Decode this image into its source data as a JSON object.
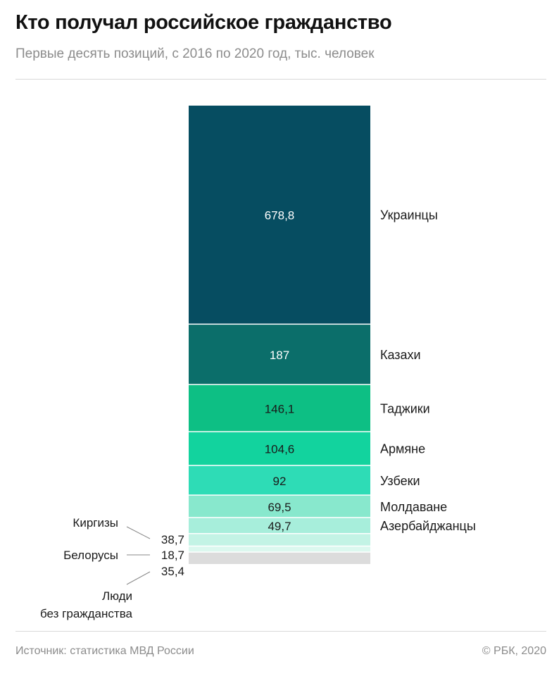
{
  "header": {
    "title": "Кто получал российское гражданство",
    "subtitle": "Первые десять позиций, с 2016 по 2020 год, тыс. человек"
  },
  "footer": {
    "source": "Источник: статистика МВД России",
    "copyright": "© РБК, 2020"
  },
  "chart_data": {
    "type": "bar",
    "stacked": true,
    "orientation": "vertical",
    "categories": [
      "Украинцы",
      "Казахи",
      "Таджики",
      "Армяне",
      "Узбеки",
      "Молдаване",
      "Азербайджанцы",
      "Киргизы",
      "Белорусы",
      "Люди без гражданства"
    ],
    "values": [
      678.8,
      187,
      146.1,
      104.6,
      92,
      69.5,
      49.7,
      38.7,
      18.7,
      35.4
    ],
    "value_labels": [
      "678,8",
      "187",
      "146,1",
      "104,6",
      "92",
      "69,5",
      "49,7",
      "38,7",
      "18,7",
      "35,4"
    ],
    "label_lines": [
      [
        "Украинцы"
      ],
      [
        "Казахи"
      ],
      [
        "Таджики"
      ],
      [
        "Армяне"
      ],
      [
        "Узбеки"
      ],
      [
        "Молдаване"
      ],
      [
        "Азербайджанцы"
      ],
      [
        "Киргизы"
      ],
      [
        "Белорусы"
      ],
      [
        "Люди",
        "без гражданства"
      ]
    ],
    "colors": [
      "#064d61",
      "#0b6e6a",
      "#0dbf84",
      "#12d39e",
      "#2edcb6",
      "#88e8cd",
      "#a7eedb",
      "#c3f3e5",
      "#dcf8ef",
      "#dcdcdc"
    ],
    "label_colors": [
      "#ffffff",
      "#ffffff",
      "#1a1a1a",
      "#1a1a1a",
      "#1a1a1a",
      "#1a1a1a",
      "#1a1a1a"
    ],
    "title": "Кто получал российское гражданство",
    "xlabel": "",
    "ylabel": "",
    "grid": false,
    "legend": "none"
  }
}
